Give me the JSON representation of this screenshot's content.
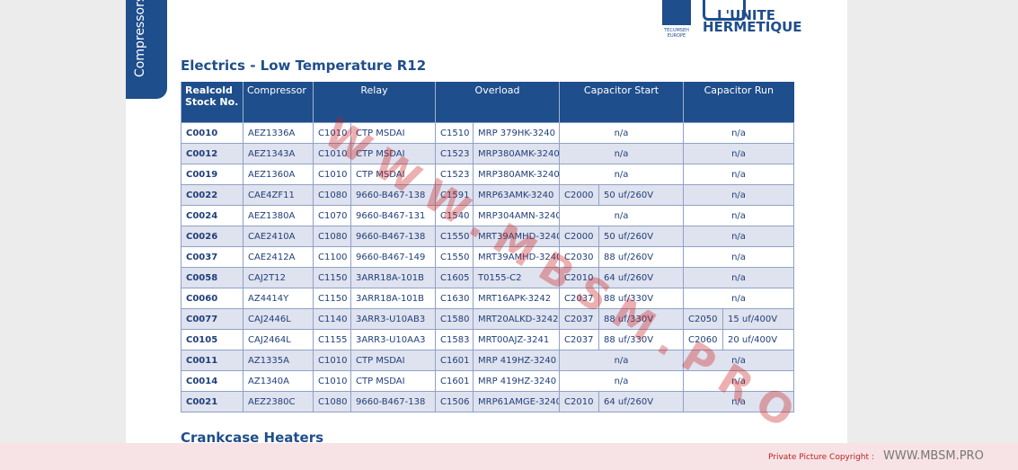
{
  "side_tab": "Compressors",
  "logo": {
    "tecumseh": "TECUMSEH EUROPE",
    "brand_line1": "L'UNITE",
    "brand_line2": "HERMETIQUE"
  },
  "title": "Electrics - Low Temperature R12",
  "table": {
    "headers": [
      "Realcold Stock No.",
      "Compressor",
      "Relay",
      "Overload",
      "Capacitor Start",
      "Capacitor Run"
    ],
    "rows": [
      [
        "C0010",
        "AEZ1336A",
        [
          "C1010",
          "CTP MSDAI"
        ],
        [
          "C1510",
          "MRP 379HK-3240"
        ],
        "n/a",
        "n/a"
      ],
      [
        "C0012",
        "AEZ1343A",
        [
          "C1010",
          "CTP MSDAI"
        ],
        [
          "C1523",
          "MRP380AMK-3240"
        ],
        "n/a",
        "n/a"
      ],
      [
        "C0019",
        "AEZ1360A",
        [
          "C1010",
          "CTP MSDAI"
        ],
        [
          "C1523",
          "MRP380AMK-3240"
        ],
        "n/a",
        "n/a"
      ],
      [
        "C0022",
        "CAE4ZF11",
        [
          "C1080",
          "9660-B467-138"
        ],
        [
          "C1591",
          "MRP63AMK-3240"
        ],
        [
          "C2000",
          "50 uf/260V"
        ],
        "n/a"
      ],
      [
        "C0024",
        "AEZ1380A",
        [
          "C1070",
          "9660-B467-131"
        ],
        [
          "C1540",
          "MRP304AMN-3240"
        ],
        "n/a",
        "n/a"
      ],
      [
        "C0026",
        "CAE2410A",
        [
          "C1080",
          "9660-B467-138"
        ],
        [
          "C1550",
          "MRT39AMHD-3240"
        ],
        [
          "C2000",
          "50 uf/260V"
        ],
        "n/a"
      ],
      [
        "C0037",
        "CAE2412A",
        [
          "C1100",
          "9660-B467-149"
        ],
        [
          "C1550",
          "MRT39AMHD-3240"
        ],
        [
          "C2030",
          "88 uf/260V"
        ],
        "n/a"
      ],
      [
        "C0058",
        "CAJ2T12",
        [
          "C1150",
          "3ARR18A-101B"
        ],
        [
          "C1605",
          "T0155-C2"
        ],
        [
          "C2010",
          "64 uf/260V"
        ],
        "n/a"
      ],
      [
        "C0060",
        "AZ4414Y",
        [
          "C1150",
          "3ARR18A-101B"
        ],
        [
          "C1630",
          "MRT16APK-3242"
        ],
        [
          "C2037",
          "88 uf/330V"
        ],
        "n/a"
      ],
      [
        "C0077",
        "CAJ2446L",
        [
          "C1140",
          "3ARR3-U10AB3"
        ],
        [
          "C1580",
          "MRT20ALKD-3242"
        ],
        [
          "C2037",
          "88 uf/330V"
        ],
        [
          "C2050",
          "15 uf/400V"
        ]
      ],
      [
        "C0105",
        "CAJ2464L",
        [
          "C1155",
          "3ARR3-U10AA3"
        ],
        [
          "C1583",
          "MRT00AJZ-3241"
        ],
        [
          "C2037",
          "88 uf/330V"
        ],
        [
          "C2060",
          "20 uf/400V"
        ]
      ],
      [
        "C0011",
        "AZ1335A",
        [
          "C1010",
          "CTP MSDAI"
        ],
        [
          "C1601",
          "MRP 419HZ-3240"
        ],
        "n/a",
        "n/a"
      ],
      [
        "C0014",
        "AZ1340A",
        [
          "C1010",
          "CTP MSDAI"
        ],
        [
          "C1601",
          "MRP 419HZ-3240"
        ],
        "n/a",
        "n/a"
      ],
      [
        "C0021",
        "AEZ2380C",
        [
          "C1080",
          "9660-B467-138"
        ],
        [
          "C1506",
          "MRP61AMGE-3240"
        ],
        [
          "C2010",
          "64 uf/260V"
        ],
        "n/a"
      ]
    ]
  },
  "next_section": "Crankcase Heaters",
  "watermark": "WWW.MBSM.PRO",
  "footer": {
    "label": "Private Picture Copyright :",
    "site": "WWW.MBSM.PRO"
  }
}
